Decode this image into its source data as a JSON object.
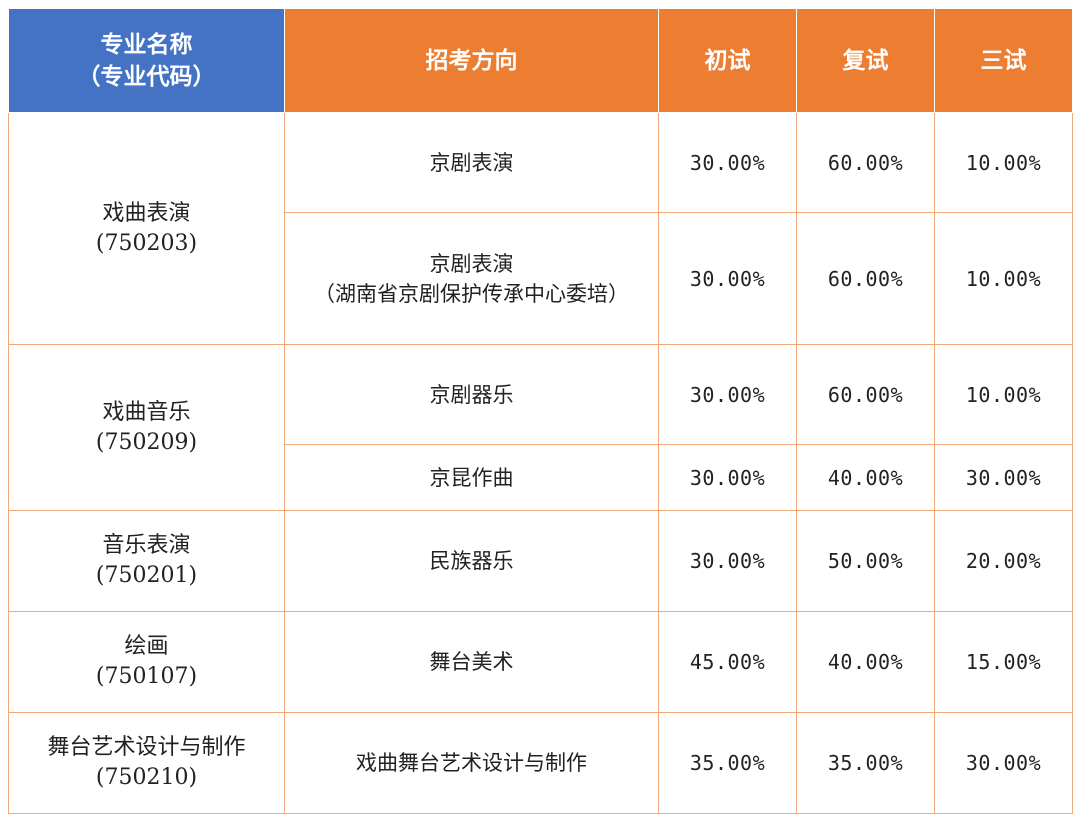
{
  "header": {
    "major_line1": "专业名称",
    "major_line2": "（专业代码）",
    "direction": "招考方向",
    "round1": "初试",
    "round2": "复试",
    "round3": "三试"
  },
  "groups": [
    {
      "name": "戏曲表演",
      "code": "(750203)",
      "rows": [
        {
          "direction": "京剧表演",
          "direction_note": "",
          "r1": "30.00%",
          "r2": "60.00%",
          "r3": "10.00%"
        },
        {
          "direction": "京剧表演",
          "direction_note": "（湖南省京剧保护传承中心委培）",
          "r1": "30.00%",
          "r2": "60.00%",
          "r3": "10.00%"
        }
      ]
    },
    {
      "name": "戏曲音乐",
      "code": "(750209)",
      "rows": [
        {
          "direction": "京剧器乐",
          "direction_note": "",
          "r1": "30.00%",
          "r2": "60.00%",
          "r3": "10.00%"
        },
        {
          "direction": "京昆作曲",
          "direction_note": "",
          "r1": "30.00%",
          "r2": "40.00%",
          "r3": "30.00%"
        }
      ]
    },
    {
      "name": "音乐表演",
      "code": "(750201)",
      "rows": [
        {
          "direction": "民族器乐",
          "direction_note": "",
          "r1": "30.00%",
          "r2": "50.00%",
          "r3": "20.00%"
        }
      ]
    },
    {
      "name": "绘画",
      "code": "(750107)",
      "rows": [
        {
          "direction": "舞台美术",
          "direction_note": "",
          "r1": "45.00%",
          "r2": "40.00%",
          "r3": "15.00%"
        }
      ]
    },
    {
      "name": "舞台艺术设计与制作",
      "code": "(750210)",
      "rows": [
        {
          "direction": "戏曲舞台艺术设计与制作",
          "direction_note": "",
          "r1": "35.00%",
          "r2": "35.00%",
          "r3": "30.00%"
        }
      ]
    }
  ],
  "colors": {
    "header_blue": "#4472c4",
    "header_orange": "#ed7d31",
    "grid_line": "#f0a978"
  }
}
